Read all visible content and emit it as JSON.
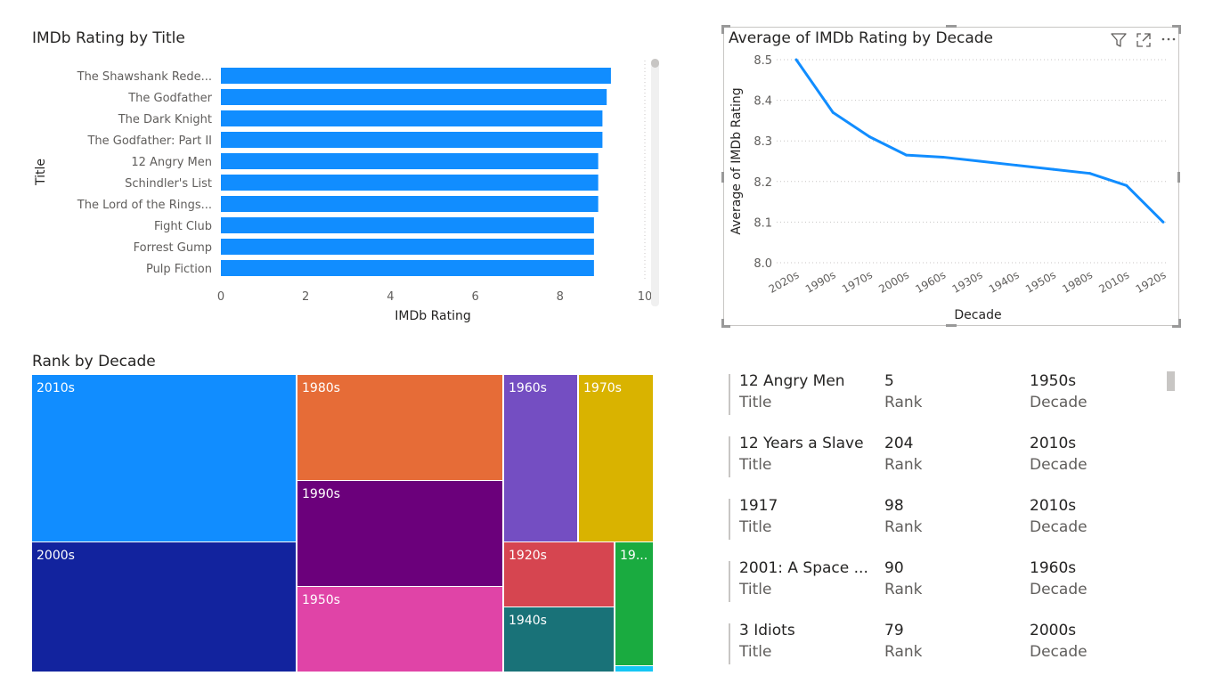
{
  "bar_chart": {
    "title": "IMDb Rating by Title",
    "chart_data": {
      "type": "bar",
      "orientation": "horizontal",
      "title": "IMDb Rating by Title",
      "xlabel": "IMDb Rating",
      "ylabel": "Title",
      "xlim": [
        0,
        10
      ],
      "ticks": [
        "0",
        "2",
        "4",
        "6",
        "8",
        "10"
      ],
      "categories": [
        "The Shawshank Rede...",
        "The Godfather",
        "The Dark Knight",
        "The Godfather: Part II",
        "12 Angry Men",
        "Schindler's List",
        "The Lord of the Rings...",
        "Fight Club",
        "Forrest Gump",
        "Pulp Fiction"
      ],
      "values": [
        9.2,
        9.1,
        9.0,
        9.0,
        8.9,
        8.9,
        8.9,
        8.8,
        8.8,
        8.8
      ],
      "color": "#118dff"
    }
  },
  "line_chart": {
    "title": "Average of IMDb Rating by Decade",
    "chart_data": {
      "type": "line",
      "title": "Average of IMDb Rating by Decade",
      "xlabel": "Decade",
      "ylabel": "Average of IMDb Rating",
      "ylim": [
        8.0,
        8.5
      ],
      "yticks": [
        "8.0",
        "8.1",
        "8.2",
        "8.3",
        "8.4",
        "8.5"
      ],
      "categories": [
        "2020s",
        "1990s",
        "1970s",
        "2000s",
        "1960s",
        "1930s",
        "1940s",
        "1950s",
        "1980s",
        "2010s",
        "1920s"
      ],
      "values": [
        8.5,
        8.37,
        8.31,
        8.265,
        8.26,
        8.25,
        8.24,
        8.23,
        8.22,
        8.19,
        8.1
      ],
      "color": "#118dff",
      "grid": true
    }
  },
  "treemap": {
    "title": "Rank by Decade",
    "chart_data": {
      "type": "treemap",
      "title": "Rank by Decade",
      "items": [
        {
          "label": "2010s",
          "color": "#118dff"
        },
        {
          "label": "2000s",
          "color": "#12239e"
        },
        {
          "label": "1980s",
          "color": "#e66c37"
        },
        {
          "label": "1990s",
          "color": "#6b007b"
        },
        {
          "label": "1950s",
          "color": "#e044a7"
        },
        {
          "label": "1960s",
          "color": "#744ec2"
        },
        {
          "label": "1970s",
          "color": "#d9b300"
        },
        {
          "label": "1920s",
          "color": "#d64550"
        },
        {
          "label": "1940s",
          "color": "#197278"
        },
        {
          "label": "19...",
          "color": "#1aab40"
        }
      ]
    }
  },
  "multirow": {
    "field_labels": {
      "title": "Title",
      "rank": "Rank",
      "decade": "Decade"
    },
    "rows": [
      {
        "title": "12 Angry Men",
        "rank": "5",
        "decade": "1950s"
      },
      {
        "title": "12 Years a Slave",
        "rank": "204",
        "decade": "2010s"
      },
      {
        "title": "1917",
        "rank": "98",
        "decade": "2010s"
      },
      {
        "title": "2001: A Space ...",
        "rank": "90",
        "decade": "1960s"
      },
      {
        "title": "3 Idiots",
        "rank": "79",
        "decade": "2000s"
      }
    ]
  },
  "visual_header_icons": [
    "filter-icon",
    "focus-mode-icon",
    "more-options-icon"
  ]
}
